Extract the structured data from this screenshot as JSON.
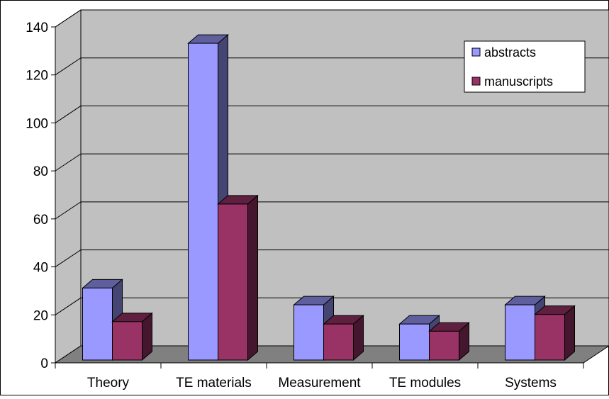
{
  "chart_data": {
    "type": "bar",
    "title": "",
    "xlabel": "",
    "ylabel": "",
    "categories": [
      "Theory",
      "TE materials",
      "Measurement",
      "TE modules",
      "Systems"
    ],
    "series": [
      {
        "name": "abstracts",
        "values": [
          30,
          132,
          23,
          15,
          23
        ],
        "color": "#9999ff"
      },
      {
        "name": "manuscripts",
        "values": [
          16,
          65,
          15,
          12,
          19
        ],
        "color": "#993366"
      }
    ],
    "yticks": [
      "0",
      "20",
      "40",
      "60",
      "80",
      "100",
      "120",
      "140"
    ],
    "ylim": [
      0,
      140
    ],
    "grid": true,
    "style": "3d-clustered-column",
    "legend_position": "top-right",
    "wall_color": "#c0c0c0",
    "floor_color": "#808080"
  }
}
